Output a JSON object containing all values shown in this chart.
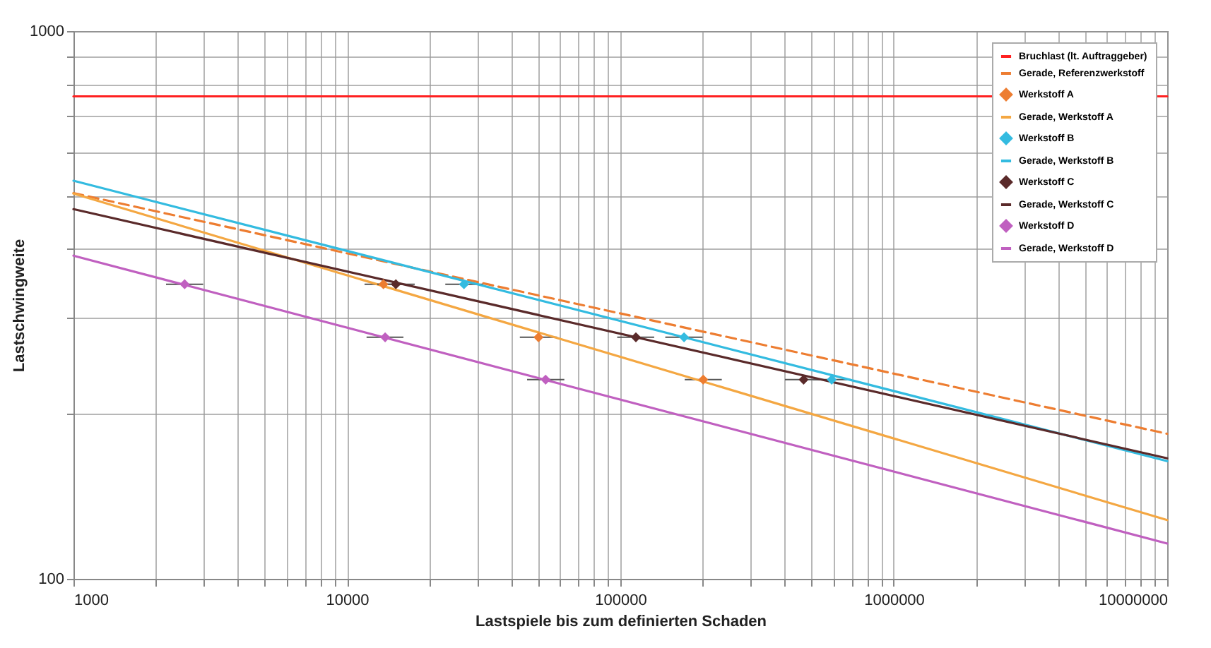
{
  "chart_data": {
    "type": "line",
    "xlabel": "Lastspiele bis zum definierten Schaden",
    "ylabel": "Lastschwingweite",
    "log": "xy",
    "grid": true,
    "legend": "top right",
    "xlim": [
      1000,
      10000000
    ],
    "ylim": [
      100,
      1000
    ],
    "xticks": [
      1000,
      {
        "value": 2000,
        "label": null
      },
      {
        "value": 3000,
        "label": null
      },
      {
        "value": 4000,
        "label": null
      },
      {
        "value": 5000,
        "label": null
      },
      {
        "value": 6000,
        "label": null
      },
      {
        "value": 7000,
        "label": null
      },
      {
        "value": 8000,
        "label": null
      },
      {
        "value": 9000,
        "label": null
      },
      10000,
      {
        "value": 20000,
        "label": null
      },
      {
        "value": 30000,
        "label": null
      },
      {
        "value": 40000,
        "label": null
      },
      {
        "value": 50000,
        "label": null
      },
      {
        "value": 60000,
        "label": null
      },
      {
        "value": 70000,
        "label": null
      },
      {
        "value": 80000,
        "label": null
      },
      {
        "value": 90000,
        "label": null
      },
      100000,
      {
        "value": 200000,
        "label": null
      },
      {
        "value": 300000,
        "label": null
      },
      {
        "value": 400000,
        "label": null
      },
      {
        "value": 500000,
        "label": null
      },
      {
        "value": 600000,
        "label": null
      },
      {
        "value": 700000,
        "label": null
      },
      {
        "value": 800000,
        "label": null
      },
      {
        "value": 900000,
        "label": null
      },
      1000000,
      {
        "value": 2000000,
        "label": null
      },
      {
        "value": 3000000,
        "label": null
      },
      {
        "value": 4000000,
        "label": null
      },
      {
        "value": 5000000,
        "label": null
      },
      {
        "value": 6000000,
        "label": null
      },
      {
        "value": 7000000,
        "label": null
      },
      {
        "value": 8000000,
        "label": null
      },
      {
        "value": 9000000,
        "label": null
      },
      10000000
    ],
    "yticks": [
      100,
      {
        "value": 200,
        "label": null
      },
      {
        "value": 300,
        "label": null
      },
      {
        "value": 400,
        "label": null
      },
      {
        "value": 500,
        "label": null
      },
      {
        "value": 600,
        "label": null
      },
      {
        "value": 700,
        "label": null
      },
      {
        "value": 800,
        "label": null
      },
      {
        "value": 900,
        "label": null
      },
      1000
    ],
    "series": [
      {
        "name": "Bruchlast (lt. Auftraggeber)",
        "color": "#ff2020",
        "line_style": "solid",
        "x": [
          1000,
          10000000
        ],
        "values": [
          760,
          760
        ]
      },
      {
        "name": "Gerade, Referenzwerkstoff",
        "color": "#ed7d31",
        "line_style": "dashed",
        "x": [
          1000,
          10000000
        ],
        "values": [
          506,
          184
        ]
      },
      {
        "name": "Werkstoff A",
        "type": "scatter",
        "color": "#ed7d31",
        "marker": "diamond",
        "x": [
          13600,
          50200,
          201000
        ],
        "values": [
          345,
          276,
          231
        ],
        "xerrors": [
          [
            11600,
            15900
          ],
          [
            42900,
            58700
          ],
          [
            172000,
            235000
          ]
        ]
      },
      {
        "name": "Gerade, Werkstoff A",
        "color": "#f4a742",
        "line_style": "solid",
        "x": [
          1000,
          10000000
        ],
        "values": [
          505,
          128
        ]
      },
      {
        "name": "Werkstoff B",
        "type": "scatter",
        "color": "#33bbe0",
        "marker": "diamond",
        "x": [
          26800,
          171000,
          593000
        ],
        "values": [
          345,
          276,
          231
        ],
        "xerrors": [
          [
            22900,
            31400
          ],
          [
            146000,
            200000
          ],
          [
            507000,
            694000
          ]
        ]
      },
      {
        "name": "Gerade, Werkstoff B",
        "color": "#33bbe0",
        "line_style": "solid",
        "x": [
          1000,
          10000000
        ],
        "values": [
          533,
          164
        ]
      },
      {
        "name": "Werkstoff C",
        "type": "scatter",
        "color": "#5a2a2a",
        "marker": "diamond",
        "x": [
          15100,
          114000,
          468000
        ],
        "values": [
          345,
          276,
          231
        ],
        "xerrors": [
          [
            12900,
            17700
          ],
          [
            97400,
            133000
          ],
          [
            400000,
            548000
          ]
        ]
      },
      {
        "name": "Gerade, Werkstoff C",
        "color": "#5a2a2a",
        "line_style": "solid",
        "x": [
          1000,
          10000000
        ],
        "values": [
          473,
          166
        ]
      },
      {
        "name": "Werkstoff D",
        "type": "scatter",
        "color": "#c060c0",
        "marker": "diamond",
        "x": [
          2550,
          13800,
          53300
        ],
        "values": [
          345,
          276,
          231
        ],
        "xerrors": [
          [
            2180,
            2980
          ],
          [
            11800,
            16100
          ],
          [
            45600,
            62400
          ]
        ]
      },
      {
        "name": "Gerade, Werkstoff D",
        "color": "#c060c0",
        "line_style": "solid",
        "x": [
          1000,
          10000000
        ],
        "values": [
          389,
          116
        ]
      }
    ]
  }
}
